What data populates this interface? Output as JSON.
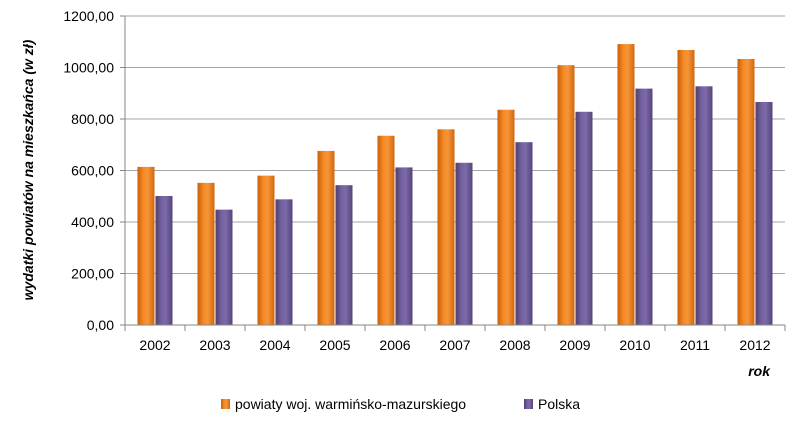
{
  "chart_data": {
    "type": "bar",
    "categories": [
      "2002",
      "2003",
      "2004",
      "2005",
      "2006",
      "2007",
      "2008",
      "2009",
      "2010",
      "2011",
      "2012"
    ],
    "series": [
      {
        "name": "powiaty woj. warmińsko-mazurskiego",
        "color": "#f07f1a",
        "values": [
          614,
          552,
          580,
          676,
          735,
          760,
          836,
          1009,
          1091,
          1068,
          1033
        ]
      },
      {
        "name": "Polska",
        "color": "#6b5591",
        "values": [
          501,
          448,
          488,
          543,
          612,
          630,
          710,
          828,
          918,
          927,
          866
        ]
      }
    ],
    "ylim": [
      0,
      1200
    ],
    "yticks": [
      0,
      200,
      400,
      600,
      800,
      1000,
      1200
    ],
    "ytick_labels": [
      "0,00",
      "200,00",
      "400,00",
      "600,00",
      "800,00",
      "1000,00",
      "1200,00"
    ],
    "ylabel": "wydatki powiatów na mieszkańca (w zł)",
    "xlabel": "rok",
    "grid": true,
    "legend_position": "bottom"
  }
}
